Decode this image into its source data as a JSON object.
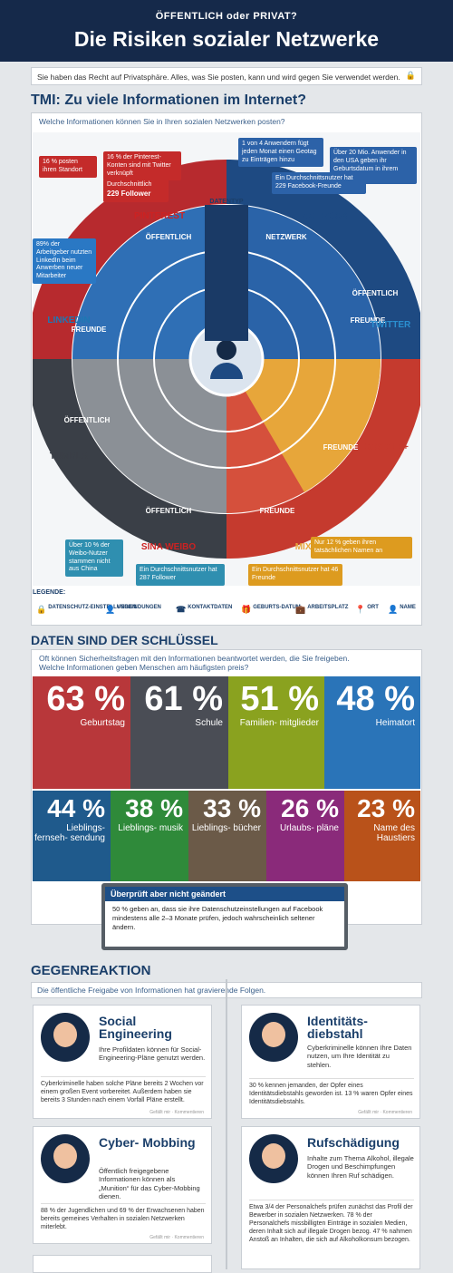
{
  "header": {
    "supertitle": "ÖFFENTLICH oder PRIVAT?",
    "title": "Die Risiken sozialer Netzwerke"
  },
  "intro": "Sie haben das Recht auf Privatsphäre. Alles, was Sie posten, kann und wird gegen Sie verwendet werden.",
  "tmi": {
    "title": "TMI: Zu viele Informationen im Internet?",
    "question": "Welche Informationen können Sie in Ihren sozialen Netzwerken posten?",
    "callouts": {
      "standort": "16 % posten ihren Standort",
      "pinterest": "16 % der Pinterest-Konten sind mit Twitter verknüpft",
      "pin_followers_l": "Durchschnittlich",
      "pin_followers_v": "229 Follower",
      "fb_daily": "1 von 4 Anwendern fügt jeden Monat einen Geotag zu Einträgen hinzu",
      "fb_usa": "Über 20 Mio. Anwender in den USA geben ihr Geburtsdatum in ihrem Profil an",
      "fb_friends": "Ein Durchschnittsnutzer hat 229 Facebook-Freunde",
      "linkedin": "89% der Arbeitgeber nutzten LinkedIn beim Anwerben neuer Mitarbeiter",
      "weibo": "Über 10 % der Weibo-Nutzer stammen nicht aus China",
      "weibo_follow": "Ein Durchschnittsnutzer hat 287 Follower",
      "mixi_name": "Nur 12 % geben ihren tatsächlichen Namen an",
      "mixi_friends": "Ein Durchschnittsnutzer hat 46 Freunde"
    },
    "wheel": {
      "datentyp": "DATENTYP",
      "networks": [
        "PINTEREST",
        "FACEBOOK",
        "TWITTER",
        "GOOGLE+",
        "MIXI",
        "SINA WEIBO",
        "TUMBLR",
        "LINKEDIN"
      ],
      "labels": [
        "ÖFFENTLICH",
        "NETZWERK",
        "FREUNDE",
        "ÖFFENTLICH",
        "FREUNDE",
        "FREUNDE",
        "ÖFFENTLICH",
        "ÖFFENTLICH",
        "FREUNDE"
      ]
    },
    "legend_title": "LEGENDE:",
    "legend": [
      "DATENSCHUTZ-EINSTELLUNGEN",
      "VERBINDUNGEN",
      "KONTAKTDATEN",
      "GEBURTS-DATUM",
      "ARBEITSPLATZ",
      "ORT",
      "NAME"
    ]
  },
  "keys": {
    "title": "DATEN SIND DER SCHLÜSSEL",
    "question_1": "Oft können Sicherheitsfragen mit den Informationen beantwortet werden, die Sie freigeben.",
    "question_2": "Welche Informationen geben Menschen am häufigsten preis?",
    "tiles": [
      {
        "p": "63 %",
        "l": "Geburtstag",
        "c": "#b8373a"
      },
      {
        "p": "61 %",
        "l": "Schule",
        "c": "#4a4d55"
      },
      {
        "p": "51 %",
        "l": "Familien- mitglieder",
        "c": "#8aa21f"
      },
      {
        "p": "48 %",
        "l": "Heimatort",
        "c": "#2a74b8"
      },
      {
        "p": "44 %",
        "l": "Lieblings- fernseh- sendung",
        "c": "#1f5a8c"
      },
      {
        "p": "38 %",
        "l": "Lieblings- musik",
        "c": "#2f8a3a"
      },
      {
        "p": "33 %",
        "l": "Lieblings- bücher",
        "c": "#6b5a48"
      },
      {
        "p": "26 %",
        "l": "Urlaubs- pläne",
        "c": "#8a2a7a"
      },
      {
        "p": "23 %",
        "l": "Name des Haustiers",
        "c": "#b9521a"
      }
    ],
    "note_head": "Überprüft aber nicht geändert",
    "note_body": "50 % geben an, dass sie ihre Datenschutzeinstellungen auf Facebook mindestens alle 2–3 Monate prüfen, jedoch wahrscheinlich seltener ändern."
  },
  "reaction": {
    "title": "GEGENREAKTION",
    "intro": "Die öffentliche Freigabe von Informationen hat gravierende Folgen.",
    "cards": [
      {
        "t": "Social Engineering",
        "s": "Ihre Profildaten können für Social-Engineering-Pläne genutzt werden.",
        "d": "Cyberkriminelle haben solche Pläne bereits 2 Wochen vor einem großen Event vorbereitet. Außerdem haben sie bereits 3 Stunden nach einem Vorfall Pläne erstellt."
      },
      {
        "t": "Identitäts- diebstahl",
        "s": "Cyberkriminelle können Ihre Daten nutzen, um Ihre Identität zu stehlen.",
        "d": "30 % kennen jemanden, der Opfer eines Identitätsdiebstahls geworden ist. 13 % waren Opfer eines Identitätsdiebstahls."
      },
      {
        "t": "Cyber- Mobbing",
        "s": "Öffentlich freigegebene Informationen können als „Munition“ für das Cyber-Mobbing dienen.",
        "d": "88 % der Jugendlichen und 69 % der Erwachsenen haben bereits gemeines Verhalten in sozialen Netzwerken miterlebt."
      },
      {
        "t": "Rufschädigung",
        "s": "Inhalte zum Thema Alkohol, illegale Drogen und Beschimpfungen können Ihren Ruf schädigen.",
        "d": "Etwa 3/4 der Personalchefs prüfen zunächst das Profil der Bewerber in sozialen Netzwerken. 78 % der Personalchefs missbilligten Einträge in sozialen Medien, deren Inhalt sich auf illegale Drogen bezog. 47 % nahmen Anstoß an Inhalten, die sich auf Alkoholkonsum bezogen."
      }
    ],
    "footer": "Gefällt mir · Kommentieren"
  }
}
